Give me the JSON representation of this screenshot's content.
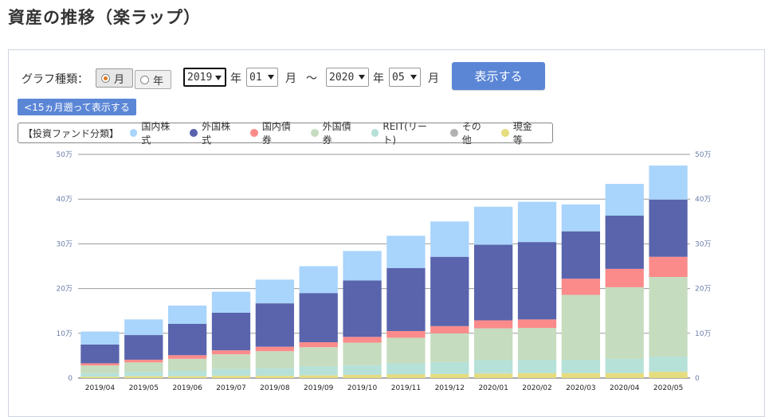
{
  "title": "資産の推移（楽ラップ）",
  "controls": {
    "graph_type_label": "グラフ種類：",
    "month_label": "月",
    "year_label": "年",
    "from_year": "2019",
    "from_month": "01",
    "to_year": "2020",
    "to_month": "05",
    "year_unit": "年",
    "month_unit": "月",
    "tilde": "～",
    "show_button": "表示する",
    "back_button": "<15ヵ月遡って表示する"
  },
  "legend": {
    "title": "【投資ファンド分類】",
    "items": [
      {
        "label": "国内株式",
        "color": "#a9d4fb"
      },
      {
        "label": "外国株式",
        "color": "#5964ad"
      },
      {
        "label": "国内債券",
        "color": "#fb8b8b"
      },
      {
        "label": "外国債券",
        "color": "#c6dcbe"
      },
      {
        "label": "REIT(リート)",
        "color": "#b6e1d8"
      },
      {
        "label": "その他",
        "color": "#b2b2b2"
      },
      {
        "label": "現金等",
        "color": "#e5dc80"
      }
    ]
  },
  "chart_data": {
    "type": "bar",
    "stacked": true,
    "categories": [
      "2019/04",
      "2019/05",
      "2019/06",
      "2019/07",
      "2019/08",
      "2019/09",
      "2019/10",
      "2019/11",
      "2019/12",
      "2020/01",
      "2020/02",
      "2020/03",
      "2020/04",
      "2020/05"
    ],
    "ylim": [
      0,
      500000
    ],
    "y_ticks": [
      0,
      100000,
      200000,
      300000,
      400000,
      500000
    ],
    "y_tick_labels": [
      "0",
      "10万",
      "20万",
      "30万",
      "40万",
      "50万"
    ],
    "grid": true,
    "series": [
      {
        "name": "現金等",
        "color": "#e5dc80",
        "values": [
          3000,
          4000,
          4000,
          5000,
          5000,
          6000,
          7000,
          8000,
          9000,
          10000,
          11000,
          11000,
          11000,
          14000
        ]
      },
      {
        "name": "その他",
        "color": "#b2b2b2",
        "values": [
          0,
          0,
          0,
          0,
          0,
          0,
          0,
          0,
          0,
          0,
          0,
          0,
          0,
          0
        ]
      },
      {
        "name": "REIT(リート)",
        "color": "#b6e1d8",
        "values": [
          8000,
          10000,
          12000,
          15000,
          17000,
          20000,
          22000,
          25000,
          27000,
          30000,
          30000,
          30000,
          32000,
          34000
        ]
      },
      {
        "name": "外国債券",
        "color": "#c6dcbe",
        "values": [
          17000,
          21000,
          27000,
          33000,
          38000,
          43000,
          50000,
          57000,
          64000,
          71000,
          71000,
          145000,
          160000,
          178000
        ]
      },
      {
        "name": "国内債券",
        "color": "#fb8b8b",
        "values": [
          5000,
          6000,
          8000,
          9000,
          10000,
          11000,
          13000,
          15000,
          16000,
          18000,
          19000,
          36000,
          41000,
          45000
        ]
      },
      {
        "name": "外国株式",
        "color": "#5964ad",
        "values": [
          42000,
          55000,
          70000,
          84000,
          97000,
          110000,
          126000,
          141000,
          155000,
          169000,
          173000,
          106000,
          119000,
          128000
        ]
      },
      {
        "name": "国内株式",
        "color": "#a9d4fb",
        "values": [
          29000,
          35000,
          41000,
          47000,
          53000,
          60000,
          66000,
          72000,
          79000,
          85000,
          90000,
          60000,
          71000,
          76000
        ]
      }
    ]
  }
}
